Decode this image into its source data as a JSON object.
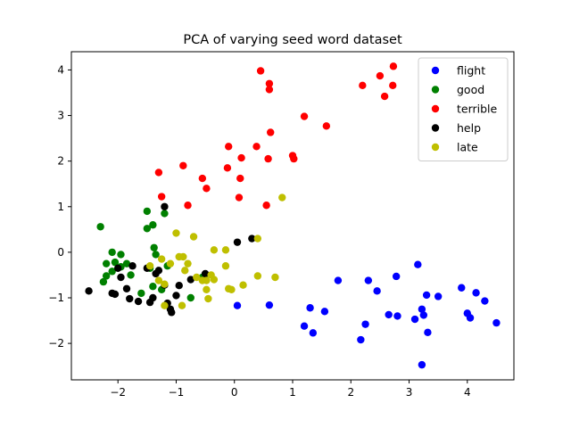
{
  "chart_data": {
    "type": "scatter",
    "title": "PCA of varying seed word dataset",
    "xlabel": "",
    "ylabel": "",
    "xlim": [
      -2.8,
      4.8
    ],
    "ylim": [
      -2.8,
      4.4
    ],
    "xticks": [
      -2,
      -1,
      0,
      1,
      2,
      3,
      4
    ],
    "yticks": [
      -2,
      -1,
      0,
      1,
      2,
      3,
      4
    ],
    "grid": false,
    "legend_position": "top-right",
    "series": [
      {
        "name": "flight",
        "color": "#0000ff",
        "points": [
          [
            0.05,
            -1.17
          ],
          [
            0.6,
            -1.16
          ],
          [
            1.2,
            -1.62
          ],
          [
            1.3,
            -1.22
          ],
          [
            1.35,
            -1.77
          ],
          [
            1.55,
            -1.3
          ],
          [
            1.78,
            -0.62
          ],
          [
            2.17,
            -1.92
          ],
          [
            2.25,
            -1.58
          ],
          [
            2.3,
            -0.62
          ],
          [
            2.45,
            -0.85
          ],
          [
            2.65,
            -1.37
          ],
          [
            2.78,
            -0.53
          ],
          [
            2.8,
            -1.4
          ],
          [
            3.1,
            -1.47
          ],
          [
            3.15,
            -0.27
          ],
          [
            3.22,
            -1.25
          ],
          [
            3.22,
            -2.47
          ],
          [
            3.25,
            -1.38
          ],
          [
            3.3,
            -0.94
          ],
          [
            3.32,
            -1.76
          ],
          [
            3.5,
            -0.97
          ],
          [
            3.9,
            -0.78
          ],
          [
            4.0,
            -1.34
          ],
          [
            4.05,
            -1.44
          ],
          [
            4.15,
            -0.89
          ],
          [
            4.3,
            -1.07
          ],
          [
            4.5,
            -1.55
          ]
        ]
      },
      {
        "name": "good",
        "color": "#008000",
        "points": [
          [
            -2.3,
            0.56
          ],
          [
            -2.1,
            0.0
          ],
          [
            -1.95,
            -0.05
          ],
          [
            -2.05,
            -0.22
          ],
          [
            -2.2,
            -0.25
          ],
          [
            -2.1,
            -0.42
          ],
          [
            -2.2,
            -0.52
          ],
          [
            -2.25,
            -0.65
          ],
          [
            -1.95,
            -0.32
          ],
          [
            -1.85,
            -0.25
          ],
          [
            -1.78,
            -0.5
          ],
          [
            -1.6,
            -0.9
          ],
          [
            -1.5,
            0.9
          ],
          [
            -1.5,
            0.52
          ],
          [
            -1.4,
            0.6
          ],
          [
            -1.38,
            0.1
          ],
          [
            -1.35,
            -0.05
          ],
          [
            -1.45,
            -0.35
          ],
          [
            -1.4,
            -0.75
          ],
          [
            -1.25,
            -0.82
          ],
          [
            -1.2,
            0.85
          ],
          [
            -1.15,
            -0.3
          ],
          [
            -0.75,
            -1.0
          ],
          [
            -0.55,
            -0.55
          ],
          [
            -0.5,
            -0.6
          ]
        ]
      },
      {
        "name": "terrible",
        "color": "#ff0000",
        "points": [
          [
            0.45,
            3.98
          ],
          [
            0.6,
            3.7
          ],
          [
            0.6,
            3.57
          ],
          [
            0.62,
            2.63
          ],
          [
            0.58,
            2.05
          ],
          [
            0.55,
            1.03
          ],
          [
            0.38,
            2.32
          ],
          [
            0.12,
            2.07
          ],
          [
            0.1,
            1.62
          ],
          [
            0.08,
            1.2
          ],
          [
            -0.1,
            2.32
          ],
          [
            -0.12,
            1.85
          ],
          [
            -0.55,
            1.62
          ],
          [
            -0.48,
            1.4
          ],
          [
            -0.88,
            1.9
          ],
          [
            -0.8,
            1.03
          ],
          [
            -1.3,
            1.75
          ],
          [
            -1.25,
            1.22
          ],
          [
            1.0,
            2.12
          ],
          [
            1.02,
            2.05
          ],
          [
            1.2,
            2.98
          ],
          [
            1.58,
            2.77
          ],
          [
            2.2,
            3.66
          ],
          [
            2.5,
            3.87
          ],
          [
            2.58,
            3.42
          ],
          [
            2.72,
            3.66
          ],
          [
            2.73,
            4.08
          ]
        ]
      },
      {
        "name": "help",
        "color": "#000000",
        "points": [
          [
            -2.5,
            -0.85
          ],
          [
            -2.1,
            -0.9
          ],
          [
            -2.05,
            -0.92
          ],
          [
            -2.0,
            -0.35
          ],
          [
            -1.95,
            -0.55
          ],
          [
            -1.85,
            -0.8
          ],
          [
            -1.75,
            -0.3
          ],
          [
            -1.8,
            -1.02
          ],
          [
            -1.65,
            -1.08
          ],
          [
            -1.5,
            -0.35
          ],
          [
            -1.45,
            -1.1
          ],
          [
            -1.4,
            -1.0
          ],
          [
            -1.35,
            -0.47
          ],
          [
            -1.3,
            -0.4
          ],
          [
            -1.2,
            1.0
          ],
          [
            -1.2,
            -0.72
          ],
          [
            -1.15,
            -1.12
          ],
          [
            -1.1,
            -1.25
          ],
          [
            -1.08,
            -1.32
          ],
          [
            -1.0,
            -0.95
          ],
          [
            -0.95,
            -0.73
          ],
          [
            -0.75,
            -0.6
          ],
          [
            -0.5,
            -0.47
          ],
          [
            0.05,
            0.22
          ],
          [
            0.3,
            0.3
          ]
        ]
      },
      {
        "name": "late",
        "color": "#bfbf00",
        "points": [
          [
            -1.45,
            -0.3
          ],
          [
            -1.3,
            -0.62
          ],
          [
            -1.25,
            -0.15
          ],
          [
            -1.2,
            -0.7
          ],
          [
            -1.2,
            -1.17
          ],
          [
            -1.1,
            -0.25
          ],
          [
            -1.0,
            0.42
          ],
          [
            -0.95,
            -0.1
          ],
          [
            -0.88,
            -0.1
          ],
          [
            -0.9,
            -1.17
          ],
          [
            -0.85,
            -0.4
          ],
          [
            -0.8,
            -0.25
          ],
          [
            -0.7,
            0.34
          ],
          [
            -0.65,
            -0.55
          ],
          [
            -0.55,
            -0.62
          ],
          [
            -0.48,
            -0.62
          ],
          [
            -0.48,
            -0.82
          ],
          [
            -0.45,
            -1.02
          ],
          [
            -0.4,
            -0.5
          ],
          [
            -0.35,
            0.05
          ],
          [
            -0.35,
            -0.6
          ],
          [
            -0.15,
            0.05
          ],
          [
            -0.15,
            -0.3
          ],
          [
            -0.1,
            -0.8
          ],
          [
            -0.05,
            -0.82
          ],
          [
            0.15,
            -0.72
          ],
          [
            0.4,
            -0.52
          ],
          [
            0.4,
            0.3
          ],
          [
            0.7,
            -0.55
          ],
          [
            0.82,
            1.2
          ]
        ]
      }
    ]
  }
}
